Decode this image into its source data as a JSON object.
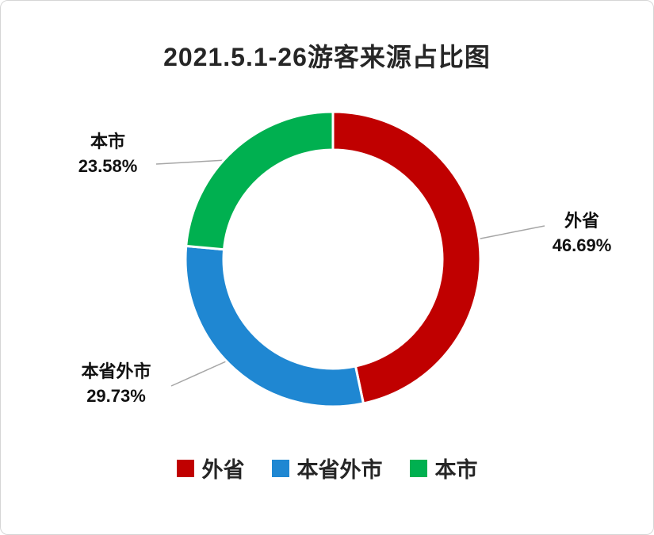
{
  "frame": {
    "background": "#FFFFFF",
    "border_color": "#D6D6D6"
  },
  "chart_data": {
    "type": "pie",
    "subtype": "donut",
    "title": "2021.5.1-26游客来源占比图",
    "start_angle_deg": 0,
    "direction": "clockwise",
    "donut_hole_ratio": 0.74,
    "legend_position": "bottom",
    "leader_line_color": "#A6A6A6",
    "slices": [
      {
        "label": "外省",
        "value": 46.69,
        "percent_label": "46.69%",
        "color": "#C00000"
      },
      {
        "label": "本省外市",
        "value": 29.73,
        "percent_label": "29.73%",
        "color": "#1F87D2"
      },
      {
        "label": "本市",
        "value": 23.58,
        "percent_label": "23.58%",
        "color": "#00B050"
      }
    ]
  }
}
